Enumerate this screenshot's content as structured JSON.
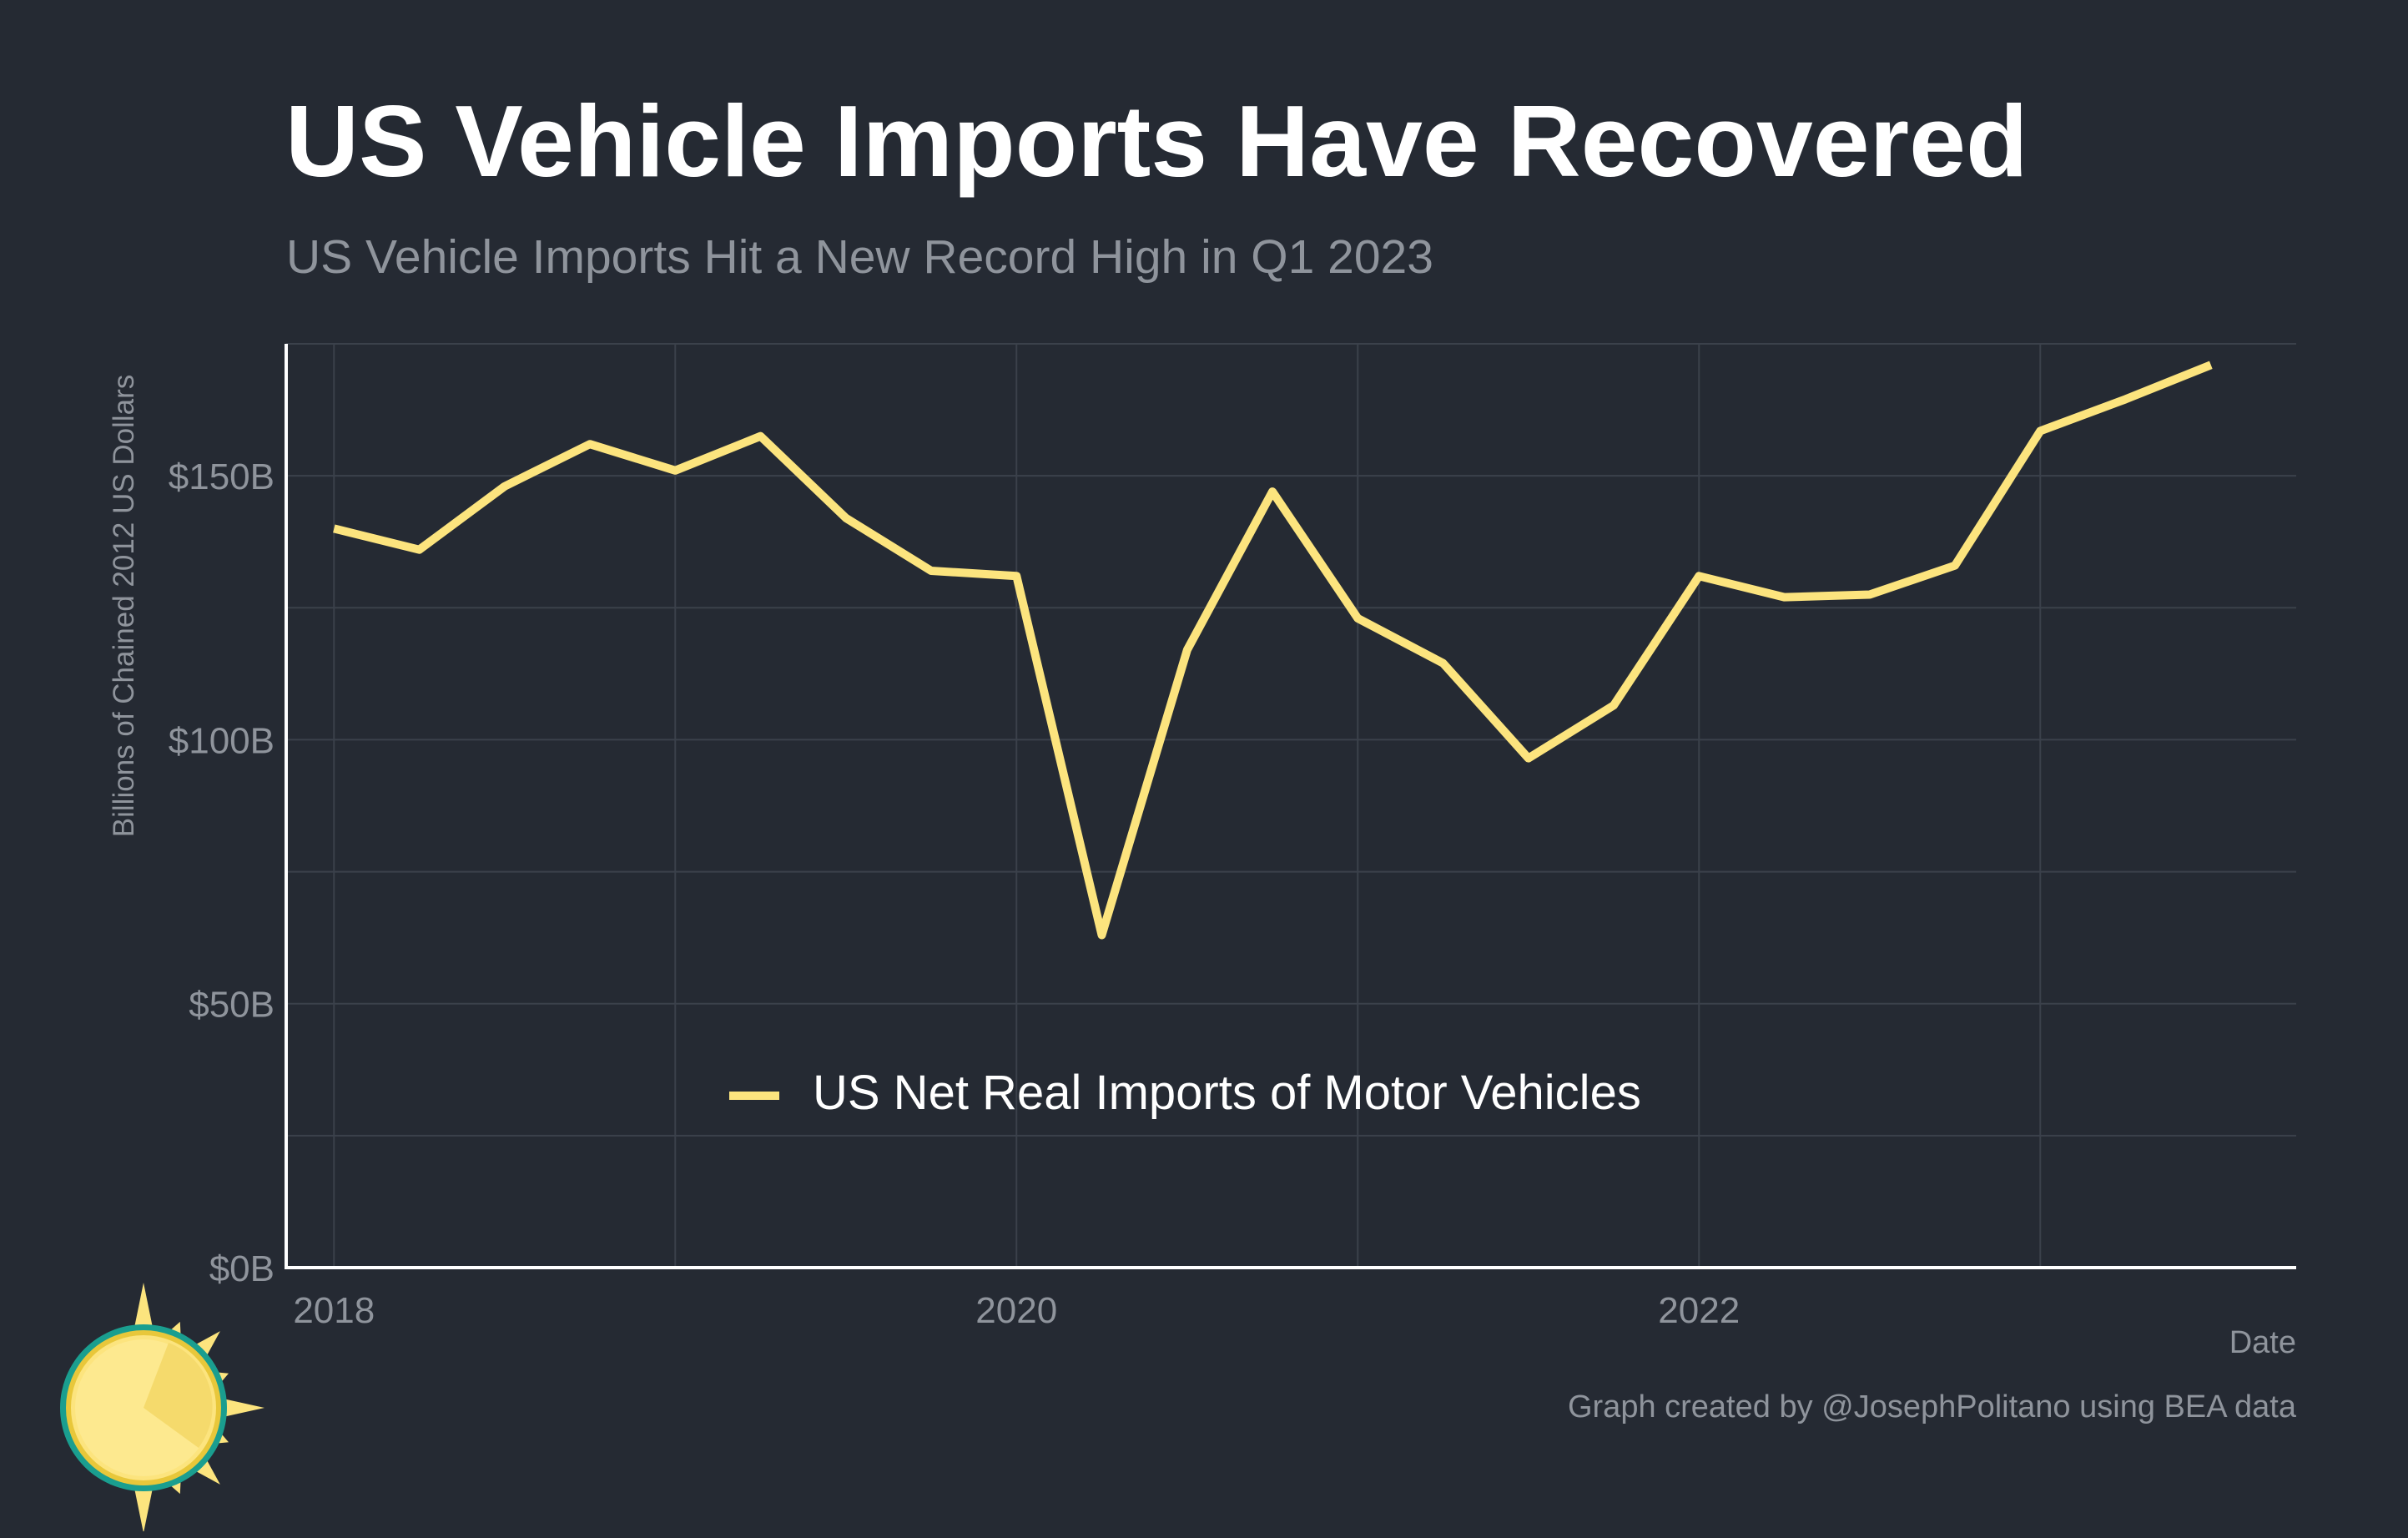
{
  "chart_data": {
    "type": "line",
    "title": "US Vehicle Imports Have Recovered",
    "subtitle": "US Vehicle Imports Hit a New Record High in Q1 2023",
    "xlabel": "Date",
    "ylabel": "Billions of Chained 2012 US Dollars",
    "xlim": [
      2017.86,
      2023.75
    ],
    "ylim": [
      0,
      175
    ],
    "x_ticks": [
      2018,
      2020,
      2022
    ],
    "x_tick_labels": [
      "2018",
      "2020",
      "2022"
    ],
    "x_minor_ticks": [
      2019,
      2021,
      2023
    ],
    "y_ticks": [
      0,
      50,
      100,
      150
    ],
    "y_tick_labels": [
      "$0B",
      "$50B",
      "$100B",
      "$150B"
    ],
    "y_minor_ticks": [
      25,
      75,
      125,
      175
    ],
    "grid": true,
    "legend_position": "bottom-center",
    "series": [
      {
        "name": "US Net Real Imports of Motor Vehicles",
        "color": "#fce47e",
        "x": [
          2018.0,
          2018.25,
          2018.5,
          2018.75,
          2019.0,
          2019.25,
          2019.5,
          2019.75,
          2020.0,
          2020.25,
          2020.5,
          2020.75,
          2021.0,
          2021.25,
          2021.5,
          2021.75,
          2022.0,
          2022.25,
          2022.5,
          2022.75,
          2023.0,
          2023.25,
          2023.5
        ],
        "y": [
          140,
          136,
          148,
          156,
          151,
          157.5,
          142,
          132,
          131,
          63,
          117,
          147,
          123,
          114.5,
          96.5,
          106.5,
          131,
          127,
          127.5,
          133,
          158.5,
          164.5,
          171
        ]
      }
    ]
  },
  "caption": "Graph created by @JosephPolitano using BEA data",
  "logo_icon": "sun-icon"
}
